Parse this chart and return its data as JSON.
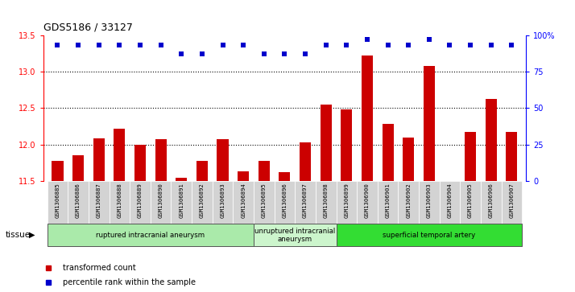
{
  "title": "GDS5186 / 33127",
  "samples": [
    "GSM1306885",
    "GSM1306886",
    "GSM1306887",
    "GSM1306888",
    "GSM1306889",
    "GSM1306890",
    "GSM1306891",
    "GSM1306892",
    "GSM1306893",
    "GSM1306894",
    "GSM1306895",
    "GSM1306896",
    "GSM1306897",
    "GSM1306898",
    "GSM1306899",
    "GSM1306900",
    "GSM1306901",
    "GSM1306902",
    "GSM1306903",
    "GSM1306904",
    "GSM1306905",
    "GSM1306906",
    "GSM1306907"
  ],
  "bar_values": [
    11.78,
    11.85,
    12.08,
    12.22,
    12.0,
    12.07,
    11.55,
    11.78,
    12.07,
    11.63,
    11.78,
    11.62,
    12.03,
    12.55,
    12.48,
    13.22,
    12.28,
    12.1,
    13.08,
    11.5,
    12.17,
    12.63,
    12.17
  ],
  "percentile_values": [
    93,
    93,
    93,
    93,
    93,
    93,
    87,
    87,
    93,
    93,
    87,
    87,
    87,
    93,
    93,
    97,
    93,
    93,
    97,
    93,
    93,
    93,
    93
  ],
  "ylim_left": [
    11.5,
    13.5
  ],
  "ylim_right": [
    0,
    100
  ],
  "yticks_left": [
    11.5,
    12.0,
    12.5,
    13.0,
    13.5
  ],
  "yticks_right": [
    0,
    25,
    50,
    75,
    100
  ],
  "ytick_labels_right": [
    "0",
    "25",
    "50",
    "75",
    "100%"
  ],
  "group_configs": [
    {
      "label": "ruptured intracranial aneurysm",
      "start": 0,
      "end": 9,
      "color": "#aaeaaa"
    },
    {
      "label": "unruptured intracranial\naneurysm",
      "start": 10,
      "end": 13,
      "color": "#ccf5cc"
    },
    {
      "label": "superficial temporal artery",
      "start": 14,
      "end": 22,
      "color": "#33dd33"
    }
  ],
  "bar_color": "#cc0000",
  "dot_color": "#0000cc",
  "plot_bg": "#ffffff",
  "cell_bg": "#d3d3d3",
  "tissue_label": "tissue",
  "legend_bar": "transformed count",
  "legend_dot": "percentile rank within the sample",
  "dotted_lines": [
    12.0,
    12.5,
    13.0
  ],
  "left_spine_color": "#cc0000",
  "right_spine_color": "#0000cc"
}
